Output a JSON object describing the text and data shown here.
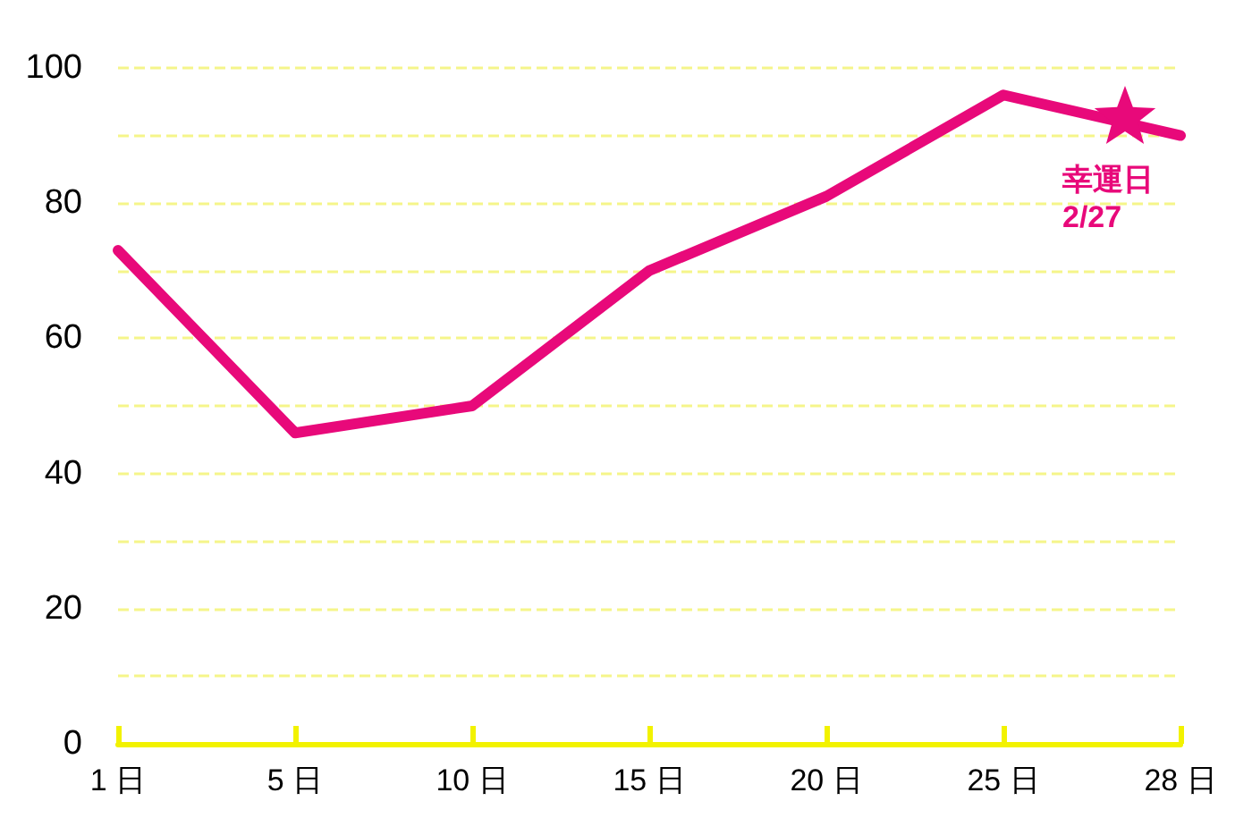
{
  "chart_data": {
    "type": "line",
    "categories": [
      "1 日",
      "5 日",
      "10 日",
      "15 日",
      "20 日",
      "25 日",
      "28 日"
    ],
    "series": [
      {
        "color": "#e8097a",
        "values": [
          73,
          46,
          50,
          70,
          81,
          96,
          90
        ]
      }
    ],
    "ylim": [
      0,
      100
    ],
    "yticks": [
      0,
      {
        "value": 10,
        "label": null
      },
      20,
      {
        "value": 30,
        "label": null
      },
      40,
      {
        "value": 50,
        "label": null
      },
      60,
      {
        "value": 70,
        "label": null
      },
      80,
      {
        "value": 90,
        "label": null
      },
      100
    ],
    "grid": "y",
    "marker": "none",
    "line_style": "solid",
    "annotations": [
      "幸運日\n2/27"
    ]
  }
}
